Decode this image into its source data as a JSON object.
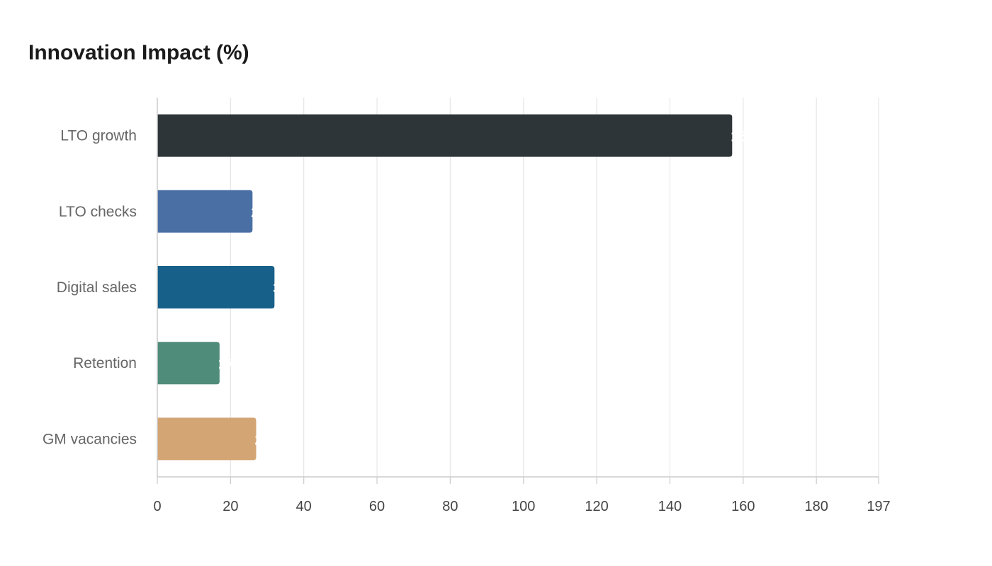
{
  "chart_data": {
    "type": "bar",
    "orientation": "horizontal",
    "title": "Innovation Impact (%)",
    "xlabel": "",
    "ylabel": "",
    "categories": [
      "LTO growth",
      "LTO checks",
      "Digital sales",
      "Retention",
      "GM vacancies"
    ],
    "values": [
      157,
      26,
      32,
      17,
      27
    ],
    "data_labels": [
      "157",
      "26",
      "32",
      "17",
      "27"
    ],
    "colors": [
      "#2e3538",
      "#4a6fa5",
      "#17608a",
      "#4f8c7a",
      "#d4a574"
    ],
    "xlim": [
      0,
      197
    ],
    "xticks": [
      0,
      20,
      40,
      60,
      80,
      100,
      120,
      140,
      160,
      180,
      197
    ],
    "grid": true,
    "legend": "none"
  }
}
